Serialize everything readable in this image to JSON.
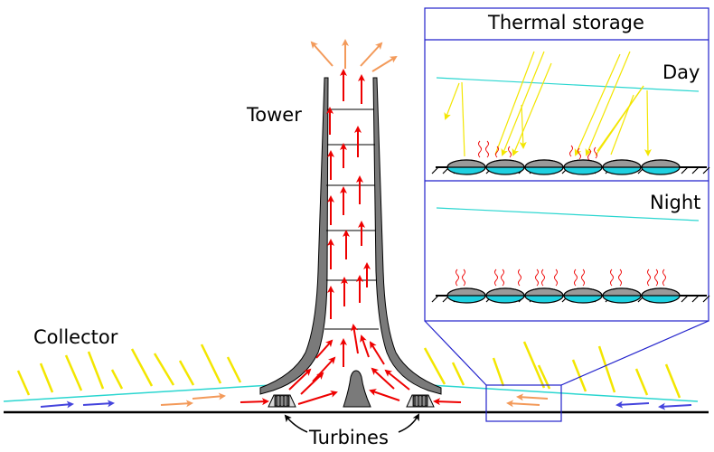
{
  "labels": {
    "tower": "Tower",
    "collector": "Collector",
    "turbines": "Turbines",
    "inset_title": "Thermal storage",
    "day": "Day",
    "night": "Night"
  },
  "colors": {
    "sun_ray": "#f3e600",
    "hot_air": "#ee0000",
    "warm_air": "#f39a5a",
    "cool_air": "#4444dd",
    "glass_line": "#2ad6d0",
    "storage_water": "#1fd0e0",
    "tower_gray": "#7a7a7a",
    "inset_border": "#2222cc"
  }
}
